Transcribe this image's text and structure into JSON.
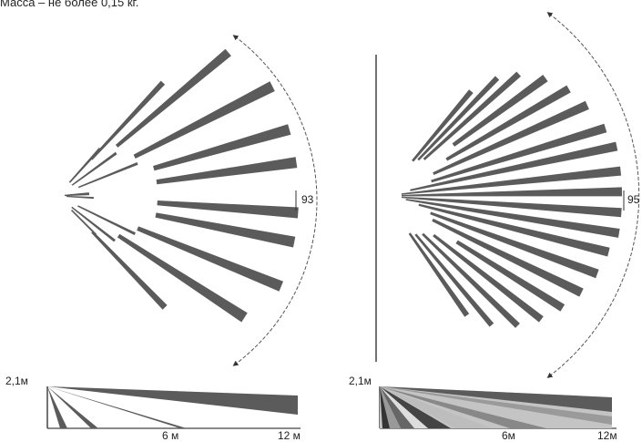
{
  "caption": "Масса – не более 0,15 кг.",
  "left_pattern": {
    "angle_label": "93",
    "height_label": "2,1м",
    "dist_mid_label": "6 м",
    "dist_far_label": "12 м"
  },
  "right_pattern": {
    "angle_label": "95",
    "height_label": "2,1м",
    "dist_mid_label": "6м",
    "dist_far_label": "12м"
  },
  "colors": {
    "beam": "#5b5b5b",
    "beam_light": "#9a9a9a",
    "beam_lighter": "#c4c4c4",
    "beam_dark": "#222222",
    "arc": "#555555",
    "text": "#222222"
  }
}
